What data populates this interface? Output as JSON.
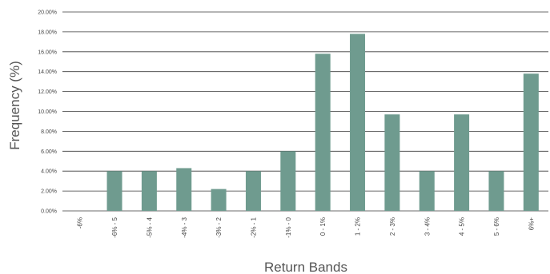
{
  "chart_data": {
    "type": "bar",
    "title": "",
    "xlabel": "Return Bands",
    "ylabel": "Frequency (%)",
    "ylim": [
      0,
      20
    ],
    "grid": true,
    "legend": "none",
    "y_tick_values": [
      0,
      2,
      4,
      6,
      8,
      10,
      12,
      14,
      16,
      18,
      20
    ],
    "y_tick_labels": [
      "0.00%",
      "2.00%",
      "4.00%",
      "6.00%",
      "8.00%",
      "10.00%",
      "12.00%",
      "14.00%",
      "16.00%",
      "18.00%",
      "20.00%"
    ],
    "categories": [
      "-6%",
      "-6% - 5",
      "-5% - 4",
      "-4% - 3",
      "-3% - 2",
      "-2% - 1",
      "-1% - 0",
      "0 - 1%",
      "1 - 2%",
      "2 - 3%",
      "3 - 4%",
      "4 - 5%",
      "5 - 6%",
      "6%+"
    ],
    "values": [
      0,
      4.0,
      4.0,
      4.3,
      2.2,
      4.0,
      6.0,
      15.8,
      17.8,
      9.7,
      4.0,
      9.7,
      4.0,
      13.8
    ],
    "bar_color": "#6f9b8f",
    "grid_color": "#3a3a3a"
  }
}
